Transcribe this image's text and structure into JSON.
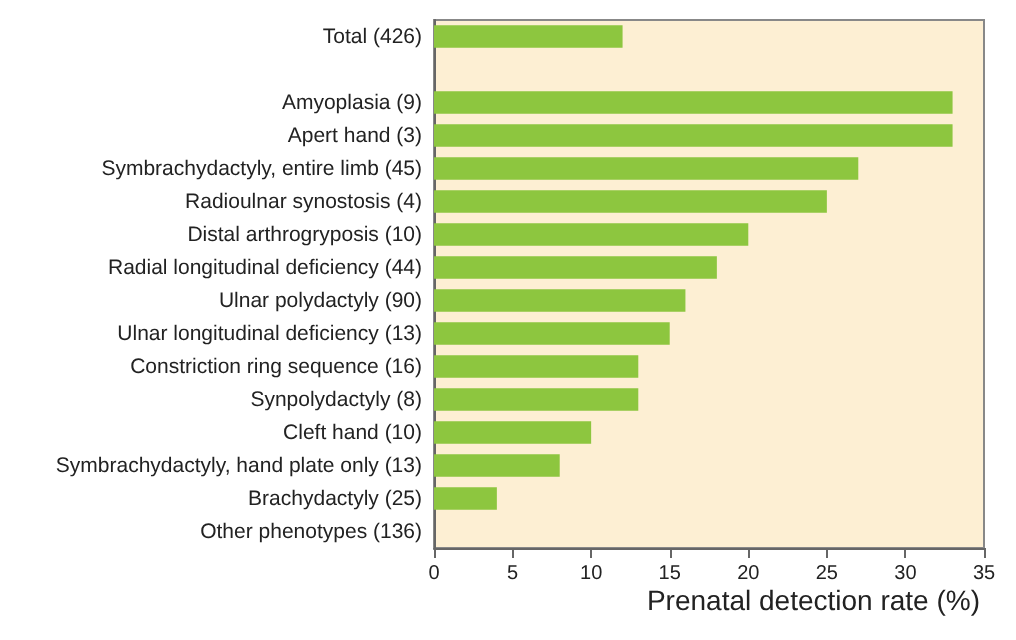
{
  "chart_data": {
    "type": "bar",
    "orientation": "horizontal",
    "xlabel": "Prenatal detection rate (%)",
    "categories": [
      "Total (426)",
      null,
      "Amyoplasia (9)",
      "Apert hand (3)",
      "Symbrachydactyly, entire limb (45)",
      "Radioulnar synostosis (4)",
      "Distal arthrogryposis (10)",
      "Radial longitudinal deficiency (44)",
      "Ulnar polydactyly (90)",
      "Ulnar longitudinal deficiency (13)",
      "Constriction ring sequence (16)",
      "Synpolydactyly (8)",
      "Cleft hand (10)",
      "Symbrachydactyly, hand plate only (13)",
      "Brachydactyly (25)",
      "Other phenotypes (136)"
    ],
    "values": [
      12,
      null,
      33,
      33,
      27,
      25,
      20,
      18,
      16,
      15,
      13,
      13,
      10,
      8,
      4,
      0
    ],
    "color": "#8dc63f",
    "xlim": [
      0,
      35
    ],
    "xticks": [
      0,
      5,
      10,
      15,
      20,
      25,
      30,
      35
    ],
    "grid": false
  }
}
